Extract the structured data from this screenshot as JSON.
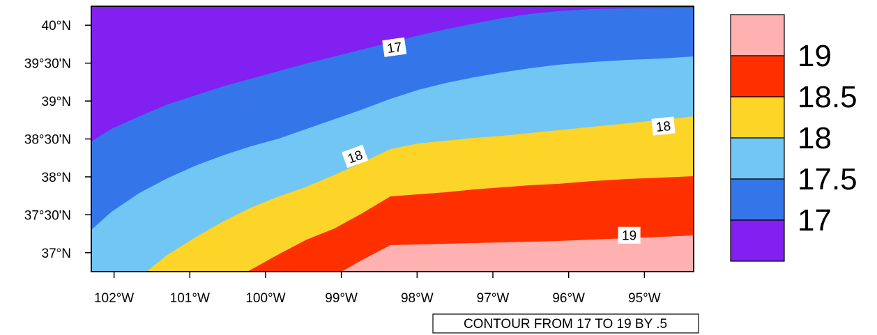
{
  "map": {
    "x_axis": {
      "tick_labels": [
        "102°W",
        "101°W",
        "100°W",
        "99°W",
        "98°W",
        "97°W",
        "96°W",
        "95°W"
      ],
      "tick_values": [
        -102,
        -101,
        -100,
        -99,
        -98,
        -97,
        -96,
        -95
      ],
      "range": [
        -102.3,
        -94.35
      ]
    },
    "y_axis": {
      "tick_labels": [
        "40°N",
        "39°30'N",
        "39°N",
        "38°30'N",
        "38°N",
        "37°30'N",
        "37°N"
      ],
      "tick_values": [
        40.0,
        39.5,
        39.0,
        38.5,
        38.0,
        37.5,
        37.0
      ],
      "range": [
        36.75,
        40.25
      ]
    },
    "contour_levels": [
      17,
      17.5,
      18,
      18.5,
      19
    ],
    "fill_colors": {
      "below_17": "#8120F0",
      "17_to_17.5": "#3476EA",
      "17.5_to_18": "#71C6F4",
      "18_to_18.5": "#FDD428",
      "18.5_to_19": "#FF3000",
      "above_19": "#FFB1B1"
    },
    "contour_labels": [
      {
        "text": "17",
        "lon": -98.3,
        "lat": 39.71
      },
      {
        "text": "18",
        "lon": -98.82,
        "lat": 38.27
      },
      {
        "text": "18",
        "lon": -94.75,
        "lat": 38.67
      },
      {
        "text": "19",
        "lon": -95.2,
        "lat": 37.23
      }
    ]
  },
  "legend": {
    "labels": [
      "19",
      "18.5",
      "18",
      "17.5",
      "17"
    ],
    "colors": [
      "#FFB1B1",
      "#FF3000",
      "#FDD428",
      "#71C6F4",
      "#3476EA",
      "#8120F0"
    ]
  },
  "caption": "CONTOUR FROM 17 TO 19 BY .5"
}
